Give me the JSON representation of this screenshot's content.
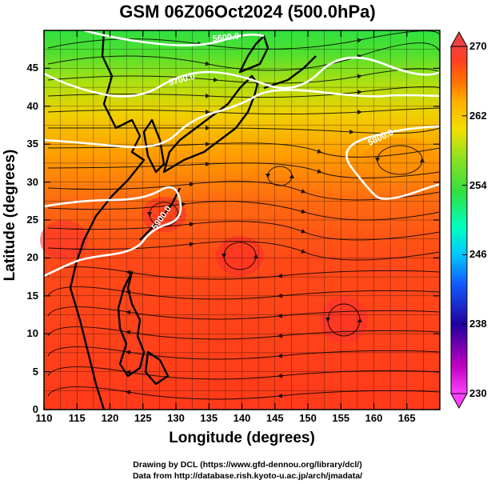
{
  "title": "GSM 06Z06Oct2024 (500.0hPa)",
  "x_axis": {
    "label": "Longitude (degrees)",
    "ticks": [
      "110",
      "115",
      "120",
      "125",
      "130",
      "135",
      "140",
      "145",
      "150",
      "155",
      "160",
      "165"
    ],
    "range": [
      110,
      170
    ]
  },
  "y_axis": {
    "label": "Latitude  (degrees)",
    "ticks": [
      "0",
      "5",
      "10",
      "15",
      "20",
      "25",
      "30",
      "35",
      "40",
      "45"
    ],
    "range": [
      0,
      50
    ]
  },
  "colorbar": {
    "ticks": [
      "230",
      "238",
      "246",
      "254",
      "262",
      "270"
    ],
    "range": [
      230,
      270
    ],
    "colors": [
      "#ff40ff",
      "#c000c0",
      "#2000a0",
      "#1060ff",
      "#00c8ff",
      "#00ffc0",
      "#30e040",
      "#90e020",
      "#f0e000",
      "#ffb000",
      "#ff7000",
      "#ff4020",
      "#f04040"
    ]
  },
  "contours": [
    {
      "label": "5600.0"
    },
    {
      "label": "5700.0"
    },
    {
      "label": "5800.0"
    },
    {
      "label": "5900.0"
    }
  ],
  "credits": {
    "line1": "Drawing by DCL (https://www.gfd-dennou.org/library/dcl/)",
    "line2": "Data from http://database.rish.kyoto-u.ac.jp/arch/jmadata/"
  }
}
